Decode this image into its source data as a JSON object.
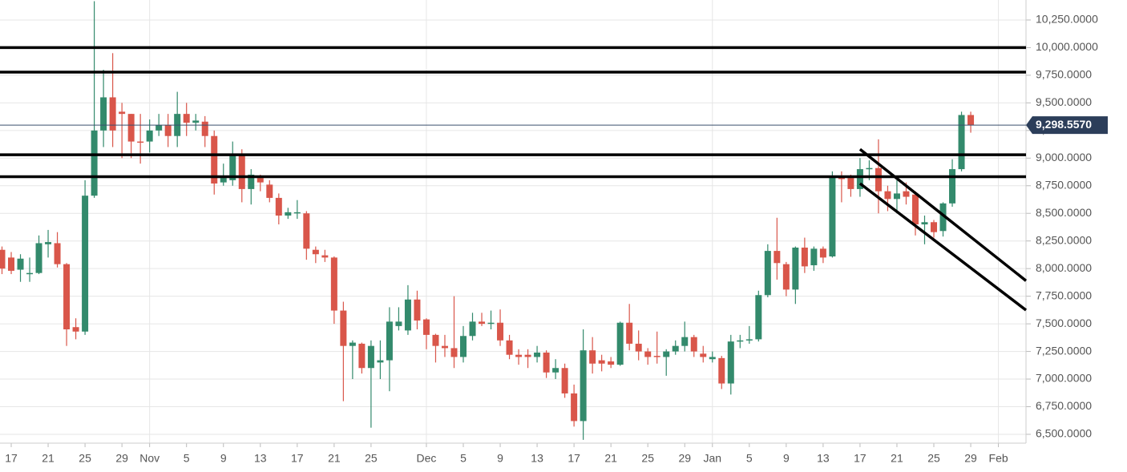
{
  "chart_data": {
    "type": "candlestick",
    "categories": [
      null,
      "17",
      null,
      null,
      null,
      "21",
      null,
      null,
      null,
      "25",
      null,
      null,
      null,
      "29",
      null,
      null,
      "Nov",
      null,
      null,
      null,
      "5",
      null,
      null,
      null,
      "9",
      null,
      null,
      null,
      "13",
      null,
      null,
      null,
      "17",
      null,
      null,
      null,
      "21",
      null,
      null,
      null,
      "25",
      null,
      null,
      null,
      null,
      null,
      "Dec",
      null,
      null,
      null,
      "5",
      null,
      null,
      null,
      "9",
      null,
      null,
      null,
      "13",
      null,
      null,
      null,
      "17",
      null,
      null,
      null,
      "21",
      null,
      null,
      null,
      "25",
      null,
      null,
      null,
      "29",
      null,
      null,
      "Jan",
      null,
      null,
      null,
      "5",
      null,
      null,
      null,
      "9",
      null,
      null,
      null,
      "13",
      null,
      null,
      null,
      "17",
      null,
      null,
      null,
      "21",
      null,
      null,
      null,
      "25",
      null,
      null,
      null,
      "29",
      null,
      null,
      "Feb"
    ],
    "open": [
      8170,
      8100,
      7990,
      7950,
      7960,
      8220,
      8230,
      8040,
      7470,
      7430,
      8660,
      9250,
      9550,
      9420,
      9400,
      9150,
      9150,
      9250,
      9300,
      9200,
      9400,
      9320,
      9330,
      9200,
      8780,
      8800,
      9030,
      8720,
      8820,
      8760,
      8640,
      8480,
      8500,
      8500,
      8170,
      8120,
      8100,
      7620,
      7300,
      7320,
      7100,
      7150,
      7170,
      7480,
      7440,
      7720,
      7540,
      7400,
      7300,
      7280,
      7200,
      7390,
      7520,
      7500,
      7510,
      7350,
      7220,
      7220,
      7200,
      7240,
      7060,
      7100,
      6870,
      6620,
      7260,
      7170,
      7160,
      7130,
      7510,
      7320,
      7250,
      7210,
      7200,
      7250,
      7300,
      7380,
      7230,
      7180,
      7190,
      6960,
      7340,
      7350,
      7360,
      7760,
      8160,
      8040,
      7810,
      8190,
      8030,
      8180,
      8110,
      8830,
      8820,
      8720,
      8900,
      8910,
      8700,
      8630,
      8700,
      8670,
      8400,
      8420,
      8340,
      8590,
      8900,
      9390,
      null,
      null,
      null
    ],
    "high": [
      8200,
      8150,
      8130,
      8100,
      8300,
      8350,
      8330,
      8050,
      7550,
      8800,
      10420,
      9800,
      9950,
      9500,
      9400,
      9400,
      9350,
      9400,
      9400,
      9600,
      9500,
      9400,
      9380,
      9250,
      8950,
      9150,
      9080,
      8900,
      8850,
      8800,
      8680,
      8550,
      8620,
      8520,
      8200,
      8170,
      8110,
      7700,
      7350,
      7330,
      7350,
      7350,
      7650,
      7650,
      7850,
      7800,
      7550,
      7410,
      7400,
      7750,
      7480,
      7600,
      7600,
      7620,
      7630,
      7400,
      7270,
      7270,
      7300,
      7260,
      7180,
      7140,
      6950,
      7450,
      7380,
      7220,
      7200,
      7520,
      7680,
      7440,
      7280,
      7430,
      7270,
      7350,
      7520,
      7400,
      7300,
      7250,
      7210,
      7400,
      7400,
      7480,
      7800,
      8220,
      8460,
      8060,
      8200,
      8280,
      8200,
      8200,
      8880,
      8880,
      8850,
      9000,
      8980,
      9170,
      8750,
      8800,
      8780,
      8700,
      8480,
      8440,
      8600,
      8990,
      9420,
      9420,
      null,
      null,
      null
    ],
    "low": [
      7950,
      7950,
      7880,
      7880,
      7950,
      8100,
      8010,
      7300,
      7360,
      7400,
      8640,
      9100,
      9100,
      9000,
      9000,
      8950,
      9050,
      9200,
      9100,
      9100,
      9200,
      9250,
      9100,
      8670,
      8750,
      8750,
      8600,
      8580,
      8700,
      8600,
      8400,
      8450,
      8450,
      8080,
      8050,
      8060,
      7500,
      6800,
      7000,
      7050,
      6560,
      7000,
      6890,
      7440,
      7400,
      7450,
      7270,
      7150,
      7200,
      7100,
      7150,
      7350,
      7480,
      7450,
      7300,
      7180,
      7130,
      7100,
      7150,
      7010,
      7000,
      6830,
      6570,
      6450,
      7050,
      7070,
      7100,
      7120,
      7260,
      7170,
      7130,
      7140,
      7030,
      7220,
      7250,
      7200,
      7150,
      7150,
      6910,
      6860,
      7280,
      7320,
      7340,
      7740,
      7900,
      7750,
      7680,
      7960,
      7980,
      8050,
      8100,
      8600,
      8650,
      8650,
      8800,
      8500,
      8520,
      8500,
      8580,
      8300,
      8220,
      8280,
      8290,
      8560,
      8880,
      9230,
      null,
      null,
      null
    ],
    "close": [
      8000,
      7980,
      8090,
      7960,
      8230,
      8240,
      8040,
      7450,
      7430,
      8660,
      9250,
      9550,
      9250,
      9400,
      9150,
      9140,
      9250,
      9300,
      9200,
      9400,
      9320,
      9340,
      9200,
      8770,
      8820,
      9030,
      8720,
      8850,
      8780,
      8640,
      8480,
      8510,
      8510,
      8180,
      8130,
      8100,
      7620,
      7300,
      7330,
      7100,
      7300,
      7170,
      7520,
      7520,
      7720,
      7530,
      7400,
      7300,
      7280,
      7200,
      7390,
      7520,
      7500,
      7510,
      7350,
      7220,
      7200,
      7200,
      7240,
      7060,
      7100,
      6870,
      6620,
      7260,
      7140,
      7140,
      7130,
      7510,
      7320,
      7250,
      7200,
      7200,
      7250,
      7300,
      7380,
      7250,
      7200,
      7200,
      6960,
      7340,
      7350,
      7360,
      7760,
      8160,
      8050,
      7810,
      8190,
      8020,
      8180,
      8100,
      8830,
      8810,
      8720,
      8900,
      8910,
      8700,
      8630,
      8680,
      8650,
      8400,
      8420,
      8330,
      8590,
      8900,
      9390,
      9298.557,
      null,
      null,
      null
    ],
    "up_color": "#338a6c",
    "down_color": "#d9564a",
    "ylim": [
      6420,
      10431
    ],
    "yticks": [
      {
        "value": 6500,
        "label": "6,500.0000"
      },
      {
        "value": 6750,
        "label": "6,750.0000"
      },
      {
        "value": 7000,
        "label": "7,000.0000"
      },
      {
        "value": 7250,
        "label": "7,250.0000"
      },
      {
        "value": 7500,
        "label": "7,500.0000"
      },
      {
        "value": 7750,
        "label": "7,750.0000"
      },
      {
        "value": 8000,
        "label": "8,000.0000"
      },
      {
        "value": 8250,
        "label": "8,250.0000"
      },
      {
        "value": 8500,
        "label": "8,500.0000"
      },
      {
        "value": 8750,
        "label": "8,750.0000"
      },
      {
        "value": 9000,
        "label": "9,000.0000"
      },
      {
        "value": 9250,
        "label": "9,250.0000"
      },
      {
        "value": 9500,
        "label": "9,500.0000"
      },
      {
        "value": 9750,
        "label": "9,750.0000"
      },
      {
        "value": 10000,
        "label": "10,000.0000"
      },
      {
        "value": 10250,
        "label": "10,250.0000"
      }
    ],
    "grid": true,
    "levels": [
      10000,
      9778,
      9030,
      8832
    ],
    "trendlines": [
      [
        9080,
        7890
      ],
      [
        8770,
        7624
      ]
    ],
    "last_price": {
      "value": 9298.557,
      "label": "9,298.5570"
    }
  }
}
